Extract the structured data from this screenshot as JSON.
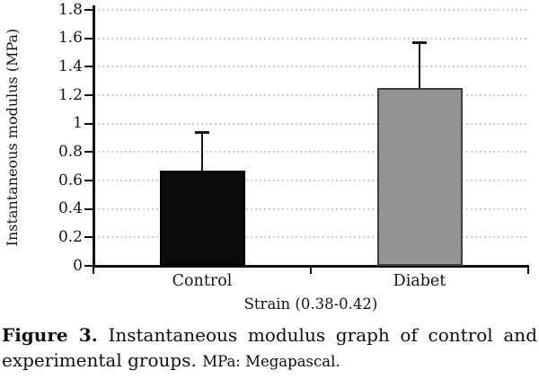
{
  "chart_data": {
    "type": "bar",
    "title": "",
    "categories": [
      "Control",
      "Diabet"
    ],
    "values": [
      0.67,
      1.25
    ],
    "error_plus": [
      0.28,
      0.33
    ],
    "xlabel": "Strain (0.38-0.42)",
    "ylabel": "Instantaneous modulus (MPa)",
    "ylim": [
      0,
      1.8
    ],
    "ytick_step": 0.2,
    "ytick_labels": [
      "0",
      "0.2",
      "0.4",
      "0.6",
      "0.8",
      "1",
      "1.2",
      "1.4",
      "1.6",
      "1.8"
    ],
    "grid": "horizontal-dotted",
    "legend": "none",
    "bar_fill_colors": [
      "#0b0b0b",
      "#949496"
    ],
    "bar_border_colors": [
      "#000000",
      "#3e3e40"
    ]
  },
  "caption": {
    "label": "Figure 3.",
    "line1_rest": "Instantaneous modulus graph of control and",
    "line2_main": "experimental groups.",
    "line2_note": "MPa: Megapascal."
  }
}
